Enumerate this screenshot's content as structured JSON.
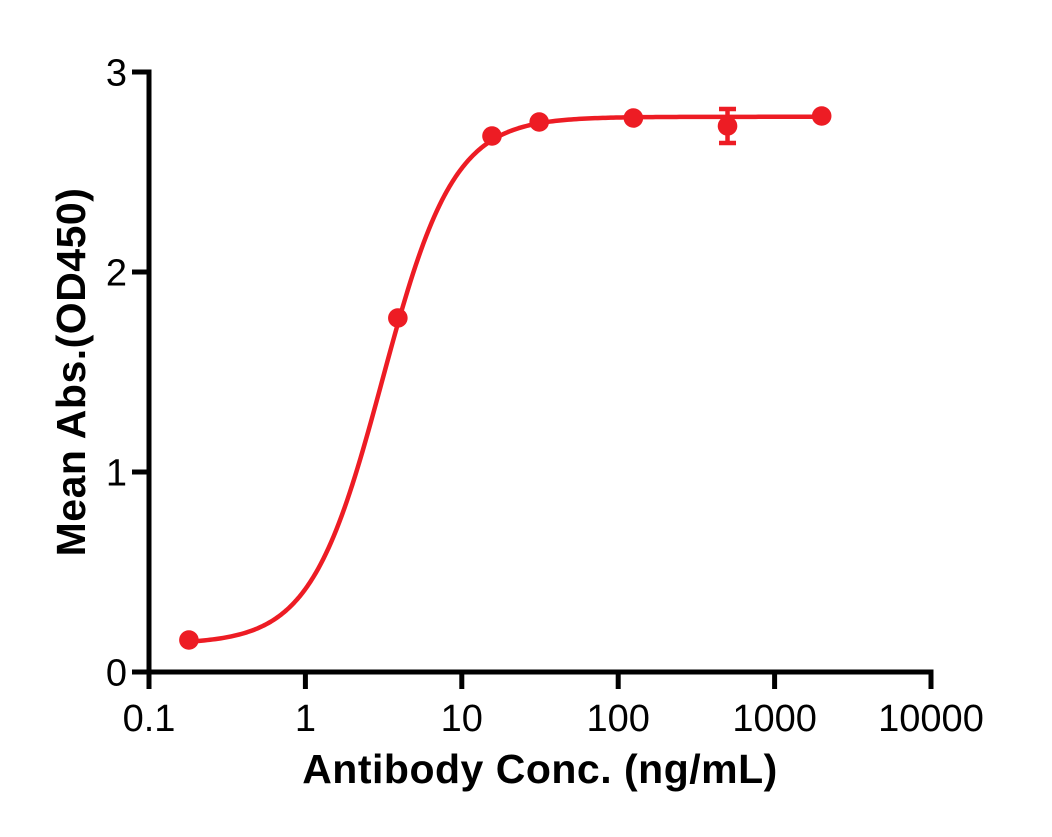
{
  "figure": {
    "background": "#ffffff",
    "axis_color": "#000000"
  },
  "chart_data": {
    "type": "scatter",
    "title": "",
    "xlabel": "Antibody Conc. (ng/mL)",
    "ylabel": "Mean Abs.(OD450)",
    "x_scale": "log10",
    "xlim": [
      0.1,
      10000
    ],
    "ylim": [
      0,
      3
    ],
    "grid": false,
    "legend": null,
    "x_ticks": {
      "values": [
        0.1,
        1,
        10,
        100,
        1000,
        10000
      ],
      "labels": [
        "0.1",
        "1",
        "10",
        "100",
        "1000",
        "10000"
      ]
    },
    "y_ticks": {
      "values": [
        0,
        1,
        2,
        3
      ],
      "labels": [
        "0",
        "1",
        "2",
        "3"
      ]
    },
    "series": [
      {
        "color": "#ED1C24",
        "marker": "circle",
        "points": [
          {
            "x": 0.18,
            "y": 0.16
          },
          {
            "x": 3.9,
            "y": 1.77
          },
          {
            "x": 15.6,
            "y": 2.68
          },
          {
            "x": 31.25,
            "y": 2.75
          },
          {
            "x": 125,
            "y": 2.77
          },
          {
            "x": 500,
            "y": 2.73,
            "error": 0.085
          },
          {
            "x": 2000,
            "y": 2.78
          }
        ],
        "fit_curve": {
          "model": "4PL",
          "bottom": 0.14,
          "top": 2.776,
          "ec50": 3.1,
          "hill": 1.9,
          "x_start": 0.18,
          "x_end": 2000
        }
      }
    ]
  }
}
